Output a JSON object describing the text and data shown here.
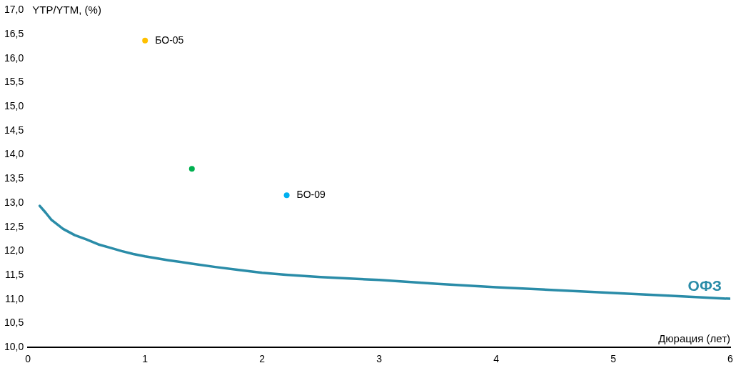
{
  "chart_data": {
    "type": "line",
    "xlabel": "Дюрация (лет)",
    "ylabel": "YTP/YTM, (%)",
    "xlim": [
      0,
      6
    ],
    "xticks": [
      0,
      1,
      2,
      3,
      4,
      5,
      6
    ],
    "ylim": [
      10,
      17
    ],
    "yticks": [
      {
        "value": 10,
        "label": "10,0"
      },
      {
        "value": 10.5,
        "label": "10,5"
      },
      {
        "value": 11,
        "label": "11,0"
      },
      {
        "value": 11.5,
        "label": "11,5"
      },
      {
        "value": 12,
        "label": "12,0"
      },
      {
        "value": 12.5,
        "label": "12,5"
      },
      {
        "value": 13,
        "label": "13,0"
      },
      {
        "value": 13.5,
        "label": "13,5"
      },
      {
        "value": 14,
        "label": "14,0"
      },
      {
        "value": 14.5,
        "label": "14,5"
      },
      {
        "value": 15,
        "label": "15,0"
      },
      {
        "value": 15.5,
        "label": "15,5"
      },
      {
        "value": 16,
        "label": "16,0"
      },
      {
        "value": 16.5,
        "label": "16,5"
      },
      {
        "value": 17,
        "label": "17,0"
      }
    ],
    "grid": false,
    "legend": false,
    "line_style": "solid",
    "series": [
      {
        "name": "ОФЗ",
        "marker": "none",
        "color": "#2a8ca8",
        "x": [
          0.1,
          0.15,
          0.2,
          0.3,
          0.4,
          0.5,
          0.6,
          0.7,
          0.8,
          0.9,
          1.0,
          1.2,
          1.4,
          1.6,
          1.8,
          2.0,
          2.2,
          2.5,
          3.0,
          3.5,
          4.0,
          4.5,
          5.0,
          5.5,
          6.0
        ],
        "values": [
          12.94,
          12.8,
          12.65,
          12.46,
          12.33,
          12.24,
          12.14,
          12.07,
          12.0,
          11.94,
          11.89,
          11.81,
          11.74,
          11.67,
          11.61,
          11.55,
          11.51,
          11.46,
          11.4,
          11.32,
          11.25,
          11.19,
          11.13,
          11.07,
          11.01
        ]
      },
      {
        "type": "scatter",
        "marker": "circle",
        "color": "#ffc000",
        "x": [
          1.0
        ],
        "values": [
          16.37
        ]
      },
      {
        "type": "scatter",
        "marker": "circle",
        "color": "#00b050",
        "x": [
          1.4
        ],
        "values": [
          13.71
        ]
      },
      {
        "type": "scatter",
        "marker": "circle",
        "color": "#00b0f0",
        "x": [
          2.21
        ],
        "values": [
          13.16
        ]
      }
    ],
    "annotations": [
      {
        "text": "БО-05",
        "x": 1.0,
        "y": 16.37
      },
      {
        "text": "БО-09",
        "x": 2.21,
        "y": 13.16
      }
    ]
  }
}
